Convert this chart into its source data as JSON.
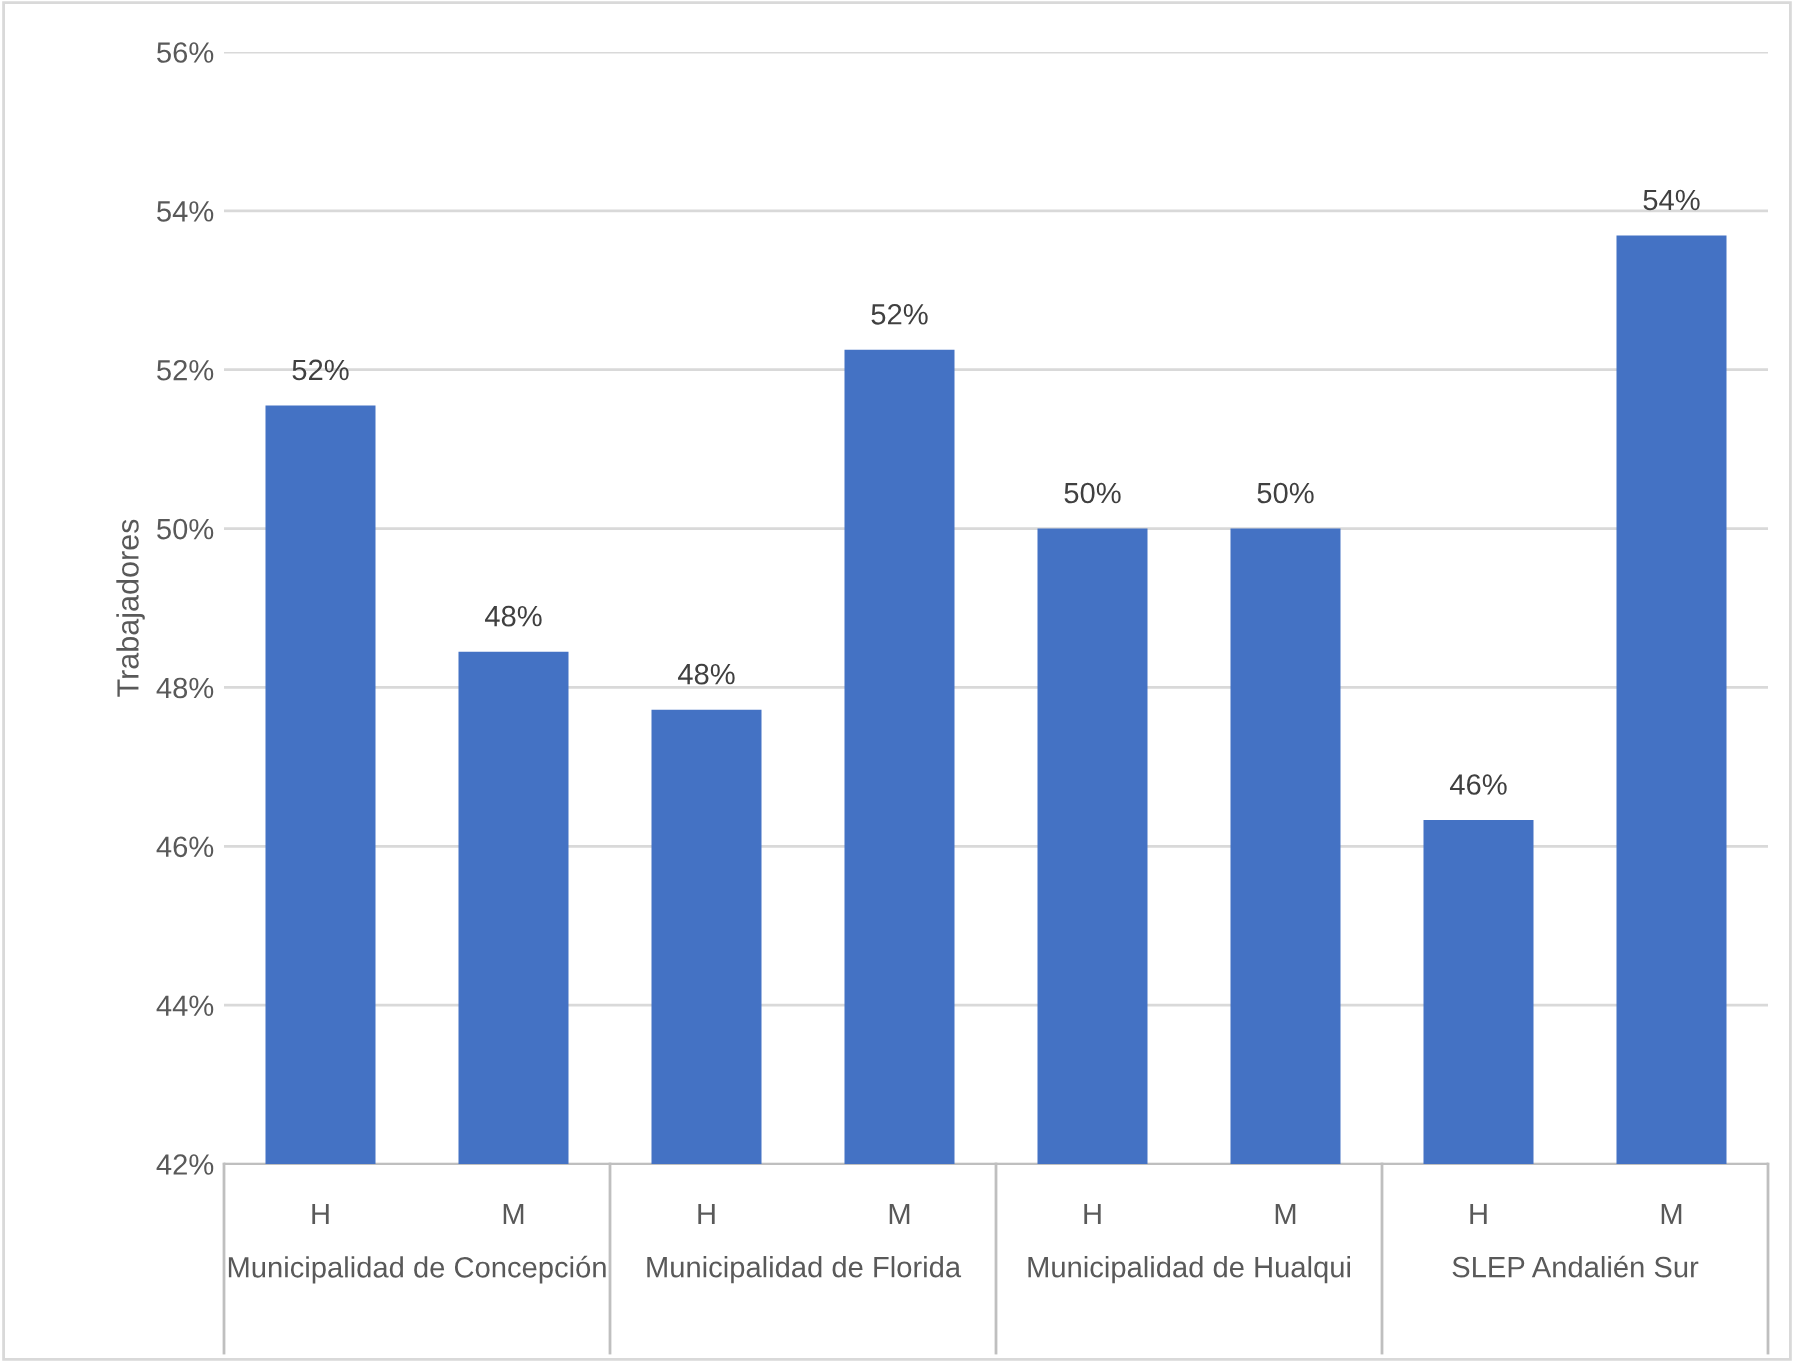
{
  "chart_data": {
    "type": "bar",
    "ylabel": "Trabajadores",
    "categories": [
      "H",
      "M",
      "H",
      "M",
      "H",
      "M",
      "H",
      "M"
    ],
    "values": [
      51.55,
      48.45,
      47.72,
      52.25,
      50,
      50,
      46.33,
      53.69
    ],
    "value_labels": [
      "52%",
      "48%",
      "48%",
      "52%",
      "50%",
      "50%",
      "46%",
      "54%"
    ],
    "color": "#4472c4",
    "ylim": [
      42,
      56
    ],
    "yticks": [
      {
        "value": 42,
        "label": "42%"
      },
      {
        "value": 44,
        "label": "44%"
      },
      {
        "value": 46,
        "label": "46%"
      },
      {
        "value": 48,
        "label": "48%"
      },
      {
        "value": 50,
        "label": "50%"
      },
      {
        "value": 52,
        "label": "52%"
      },
      {
        "value": 54,
        "label": "54%"
      },
      {
        "value": 56,
        "label": "56%"
      }
    ],
    "grid": "y",
    "annotations": [
      "Municipalidad de Concepción",
      "Municipalidad de Florida",
      "Municipalidad de Hualqui",
      "SLEP Andalién Sur"
    ]
  }
}
